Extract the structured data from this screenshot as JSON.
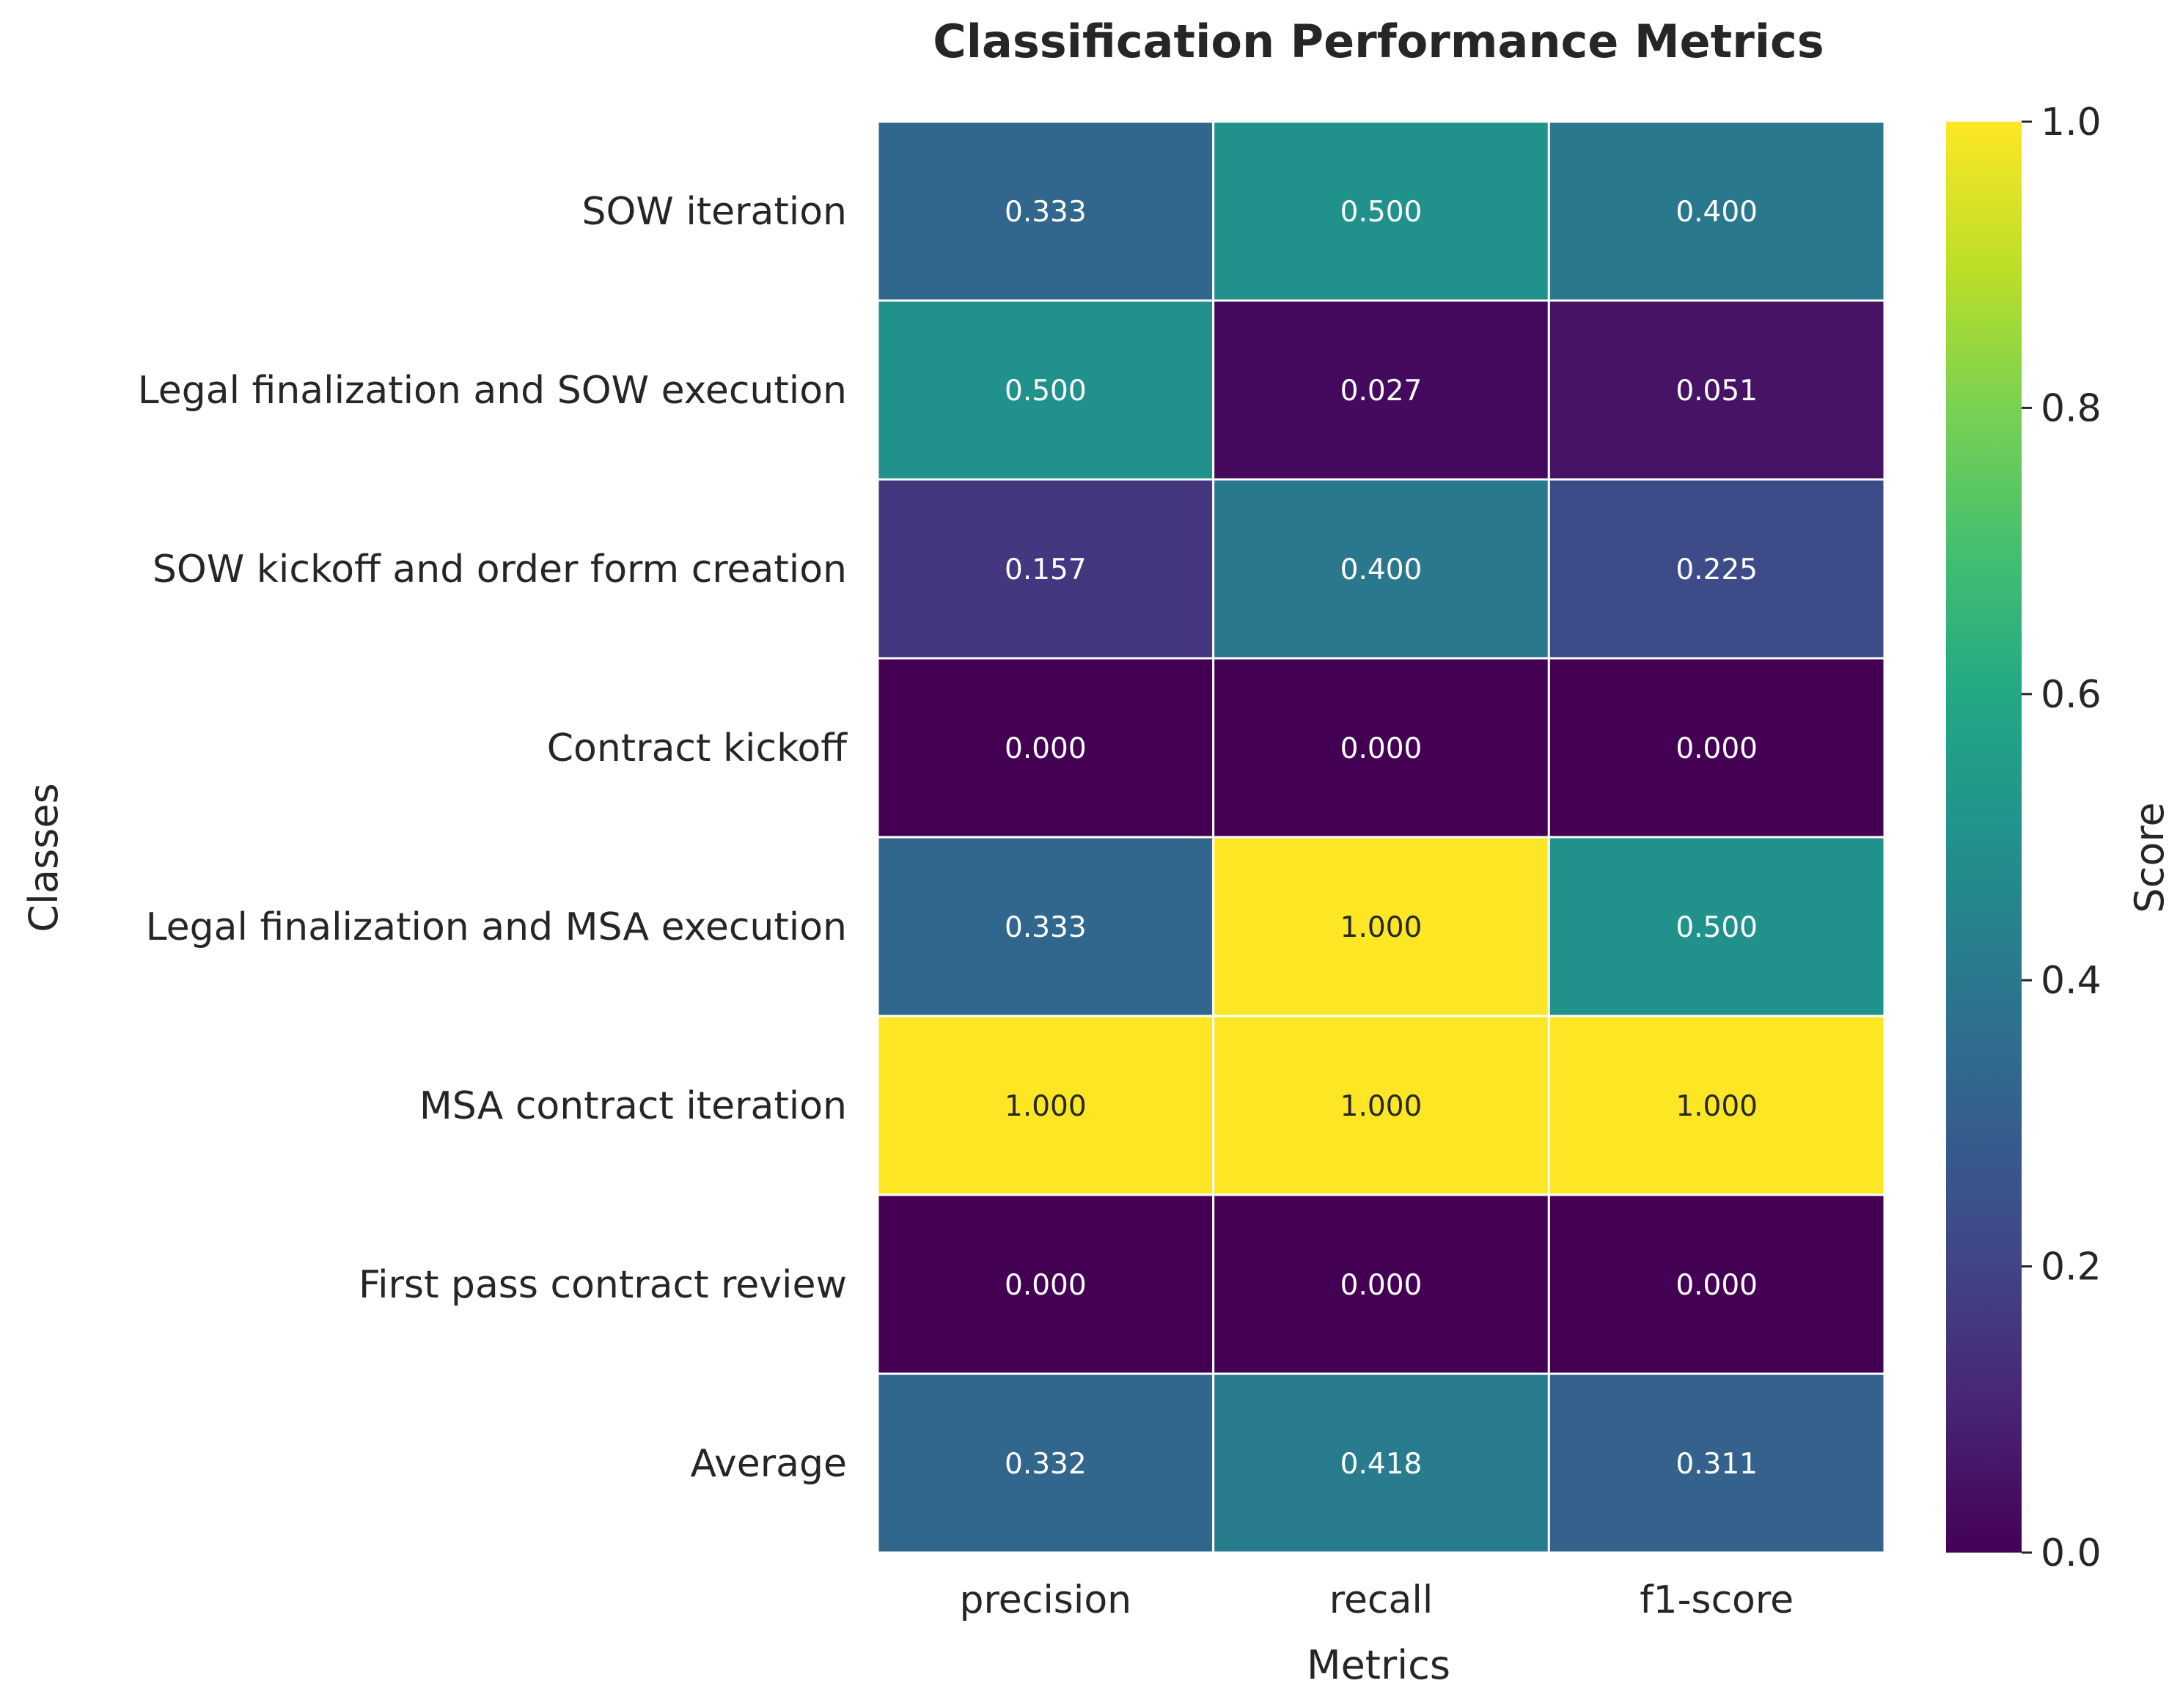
{
  "chart_data": {
    "type": "heatmap",
    "title": "Classification Performance Metrics",
    "xlabel": "Metrics",
    "ylabel": "Classes",
    "x_categories": [
      "precision",
      "recall",
      "f1-score"
    ],
    "y_categories": [
      "SOW iteration",
      "Legal finalization and SOW execution",
      "SOW kickoff and order form creation",
      "Contract kickoff",
      "Legal finalization and MSA execution",
      "MSA contract iteration",
      "First pass contract review",
      "Average"
    ],
    "values": [
      [
        0.333,
        0.5,
        0.4
      ],
      [
        0.5,
        0.027,
        0.051
      ],
      [
        0.157,
        0.4,
        0.225
      ],
      [
        0.0,
        0.0,
        0.0
      ],
      [
        0.333,
        1.0,
        0.5
      ],
      [
        1.0,
        1.0,
        1.0
      ],
      [
        0.0,
        0.0,
        0.0
      ],
      [
        0.332,
        0.418,
        0.311
      ]
    ],
    "value_labels": [
      [
        "0.333",
        "0.500",
        "0.400"
      ],
      [
        "0.500",
        "0.027",
        "0.051"
      ],
      [
        "0.157",
        "0.400",
        "0.225"
      ],
      [
        "0.000",
        "0.000",
        "0.000"
      ],
      [
        "0.333",
        "1.000",
        "0.500"
      ],
      [
        "1.000",
        "1.000",
        "1.000"
      ],
      [
        "0.000",
        "0.000",
        "0.000"
      ],
      [
        "0.332",
        "0.418",
        "0.311"
      ]
    ],
    "colormap": "viridis",
    "colorbar": {
      "label": "Score",
      "range": [
        0.0,
        1.0
      ],
      "ticks": [
        "0.0",
        "0.2",
        "0.4",
        "0.6",
        "0.8",
        "1.0"
      ]
    },
    "cell_border_color": "#ffffff"
  }
}
